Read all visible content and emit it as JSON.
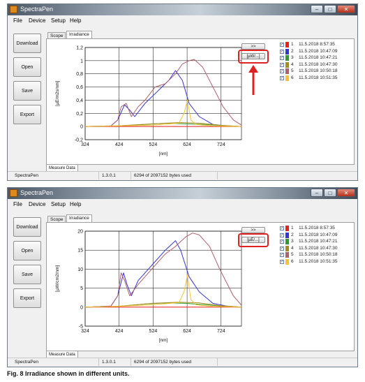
{
  "app": {
    "title": "SpectraPen",
    "menu": [
      "File",
      "Device",
      "Setup",
      "Help"
    ],
    "side_buttons": [
      "Download",
      "Open",
      "Save",
      "Export"
    ],
    "tabs": [
      "Scope",
      "Irradiance"
    ],
    "expand_button": ">>",
    "measure_tab": "Measure Data",
    "status": {
      "name": "SpectraPen",
      "version": "1.3.0.1",
      "memory": "6294 of 2097152 bytes used"
    }
  },
  "screenshots": [
    {
      "unit_button": "[µW/...]",
      "y_axis_label": "[µE/m2s/nm]",
      "x_axis_label": "[nm]"
    },
    {
      "unit_button": "[µE/...]",
      "y_axis_label": "[µW/cm2/nm]",
      "x_axis_label": "[nm]"
    }
  ],
  "legend": [
    {
      "n": "1",
      "color": "#e8221c",
      "time": "11.5.2018 8:57:35"
    },
    {
      "n": "2",
      "color": "#3434d8",
      "time": "11.5.2018 10:47:09"
    },
    {
      "n": "3",
      "color": "#2e9b2e",
      "time": "11.5.2018 10:47:21"
    },
    {
      "n": "4",
      "color": "#a88a1e",
      "time": "11.5.2018 10:47:30"
    },
    {
      "n": "5",
      "color": "#b0606a",
      "time": "11.5.2018 10:50:18"
    },
    {
      "n": "6",
      "color": "#f5c331",
      "time": "11.5.2018 10:51:35"
    }
  ],
  "caption": "Fig. 8 Irradiance shown in different units.",
  "chart_data": [
    {
      "type": "line",
      "xlabel": "[nm]",
      "ylabel": "[µE/m2s/nm]",
      "xlim": [
        324,
        784
      ],
      "ylim": [
        -0.2,
        1.2
      ],
      "xticks": [
        324,
        424,
        524,
        624,
        724
      ],
      "yticks": [
        -0.2,
        0,
        0.2,
        0.4,
        0.6,
        0.8,
        1,
        1.2
      ],
      "ytick_labels": [
        "-0,2",
        "0",
        "0,2",
        "0,4",
        "0,6",
        "0,8",
        "1",
        "1,2"
      ],
      "grid": true,
      "series": [
        {
          "name": "1",
          "color": "#e8221c",
          "x": [
            324,
            400,
            500,
            600,
            700,
            784
          ],
          "y": [
            0,
            0,
            0,
            0,
            0,
            0
          ]
        },
        {
          "name": "2",
          "color": "#3434d8",
          "x": [
            324,
            400,
            420,
            440,
            455,
            470,
            500,
            540,
            570,
            590,
            610,
            630,
            660,
            700,
            740,
            784
          ],
          "y": [
            0,
            0.01,
            0.1,
            0.33,
            0.25,
            0.15,
            0.35,
            0.55,
            0.7,
            0.85,
            0.7,
            0.35,
            0.15,
            0.03,
            0.01,
            0
          ]
        },
        {
          "name": "3",
          "color": "#2e9b2e",
          "x": [
            324,
            420,
            500,
            560,
            620,
            680,
            740,
            784
          ],
          "y": [
            0,
            0.01,
            0.03,
            0.05,
            0.04,
            0.03,
            0.01,
            0
          ]
        },
        {
          "name": "4",
          "color": "#a88a1e",
          "x": [
            324,
            420,
            520,
            600,
            660,
            720,
            784
          ],
          "y": [
            0,
            0.01,
            0.04,
            0.06,
            0.05,
            0.02,
            0
          ]
        },
        {
          "name": "5",
          "color": "#b0606a",
          "x": [
            324,
            400,
            420,
            430,
            445,
            460,
            480,
            500,
            530,
            560,
            590,
            610,
            630,
            645,
            670,
            700,
            730,
            760,
            784
          ],
          "y": [
            0,
            0.01,
            0.1,
            0.3,
            0.35,
            0.15,
            0.3,
            0.4,
            0.6,
            0.65,
            0.8,
            0.95,
            1.0,
            1.02,
            0.9,
            0.6,
            0.3,
            0.1,
            0.02
          ]
        },
        {
          "name": "6",
          "color": "#f5c331",
          "x": [
            324,
            420,
            520,
            600,
            615,
            625,
            635,
            650,
            700,
            784
          ],
          "y": [
            0,
            0.01,
            0.02,
            0.05,
            0.2,
            0.4,
            0.1,
            0.03,
            0.01,
            0
          ]
        }
      ]
    },
    {
      "type": "line",
      "xlabel": "[nm]",
      "ylabel": "[µW/cm2/nm]",
      "xlim": [
        324,
        784
      ],
      "ylim": [
        -5,
        20
      ],
      "xticks": [
        324,
        424,
        524,
        624,
        724
      ],
      "yticks": [
        -5,
        0,
        5,
        10,
        15,
        20
      ],
      "ytick_labels": [
        "-5",
        "0",
        "5",
        "10",
        "15",
        "20"
      ],
      "grid": true,
      "series": [
        {
          "name": "1",
          "color": "#e8221c",
          "x": [
            324,
            400,
            500,
            600,
            700,
            784
          ],
          "y": [
            0,
            0,
            0,
            0,
            0,
            0
          ]
        },
        {
          "name": "2",
          "color": "#3434d8",
          "x": [
            324,
            400,
            420,
            437,
            447,
            460,
            480,
            520,
            560,
            590,
            605,
            630,
            660,
            700,
            740,
            784
          ],
          "y": [
            0,
            0.3,
            3,
            9,
            6,
            3,
            7,
            11,
            15,
            17.5,
            15,
            8,
            4,
            1,
            0.3,
            0
          ]
        },
        {
          "name": "3",
          "color": "#2e9b2e",
          "x": [
            324,
            420,
            500,
            560,
            620,
            680,
            740,
            784
          ],
          "y": [
            0,
            0.2,
            0.8,
            1.1,
            1.0,
            0.6,
            0.2,
            0
          ]
        },
        {
          "name": "4",
          "color": "#a88a1e",
          "x": [
            324,
            420,
            520,
            600,
            660,
            720,
            784
          ],
          "y": [
            0,
            0.2,
            1.0,
            1.3,
            1.1,
            0.4,
            0
          ]
        },
        {
          "name": "5",
          "color": "#b0606a",
          "x": [
            324,
            400,
            420,
            430,
            440,
            455,
            480,
            520,
            560,
            590,
            620,
            640,
            660,
            690,
            720,
            760,
            784
          ],
          "y": [
            0,
            0.3,
            3,
            9,
            7,
            3,
            6,
            10,
            14,
            16,
            18.5,
            19.5,
            19,
            16,
            10,
            3,
            0.5
          ]
        },
        {
          "name": "6",
          "color": "#f5c331",
          "x": [
            324,
            420,
            520,
            600,
            615,
            625,
            635,
            650,
            700,
            784
          ],
          "y": [
            0,
            0.2,
            0.6,
            1.2,
            4,
            8.5,
            2,
            0.6,
            0.2,
            0
          ]
        }
      ]
    }
  ]
}
